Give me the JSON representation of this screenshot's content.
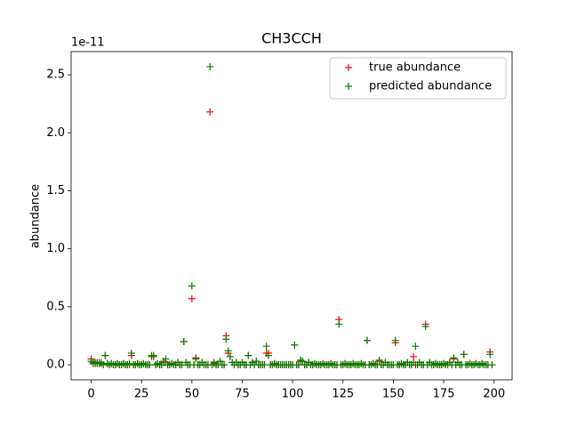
{
  "chart_data": {
    "type": "scatter",
    "title": "CH3CCH",
    "ylabel": "abundance",
    "y_offset_label": "1e-11",
    "x": [
      0,
      1,
      2,
      3,
      4,
      5,
      6,
      7,
      8,
      9,
      10,
      11,
      12,
      13,
      14,
      15,
      16,
      17,
      18,
      19,
      20,
      21,
      22,
      23,
      24,
      25,
      26,
      27,
      28,
      29,
      30,
      31,
      32,
      33,
      34,
      35,
      36,
      37,
      38,
      39,
      40,
      41,
      42,
      43,
      44,
      45,
      46,
      47,
      48,
      49,
      50,
      51,
      52,
      53,
      54,
      55,
      56,
      57,
      58,
      59,
      60,
      61,
      62,
      63,
      64,
      65,
      66,
      67,
      68,
      69,
      70,
      71,
      72,
      73,
      74,
      75,
      76,
      77,
      78,
      79,
      80,
      81,
      82,
      83,
      84,
      85,
      86,
      87,
      88,
      89,
      90,
      91,
      92,
      93,
      94,
      95,
      96,
      97,
      98,
      99,
      100,
      101,
      102,
      103,
      104,
      105,
      106,
      107,
      108,
      109,
      110,
      111,
      112,
      113,
      114,
      115,
      116,
      117,
      118,
      119,
      120,
      121,
      122,
      123,
      124,
      125,
      126,
      127,
      128,
      129,
      130,
      131,
      132,
      133,
      134,
      135,
      136,
      137,
      138,
      139,
      140,
      141,
      142,
      143,
      144,
      145,
      146,
      147,
      148,
      149,
      150,
      151,
      152,
      153,
      154,
      155,
      156,
      157,
      158,
      159,
      160,
      161,
      162,
      163,
      164,
      165,
      166,
      167,
      168,
      169,
      170,
      171,
      172,
      173,
      174,
      175,
      176,
      177,
      178,
      179,
      180,
      181,
      182,
      183,
      184,
      185,
      186,
      187,
      188,
      189,
      190,
      191,
      192,
      193,
      194,
      195,
      196,
      197,
      198,
      199
    ],
    "series": [
      {
        "name": "true abundance",
        "color": "#ff0000",
        "values": [
          0.05,
          0.02,
          0.01,
          0.02,
          0.01,
          0.02,
          0,
          0.08,
          0.01,
          0,
          0.01,
          0,
          0,
          0.01,
          0,
          0,
          0.01,
          0,
          0,
          0,
          0.08,
          0,
          0,
          0.01,
          0,
          0,
          0.01,
          0,
          0,
          0,
          0.07,
          0.08,
          0,
          0.01,
          0,
          0,
          0.03,
          0.02,
          0,
          0,
          0.01,
          0,
          0,
          0.02,
          0,
          0,
          0.2,
          0.02,
          0,
          0,
          0.57,
          0,
          0.06,
          0,
          0,
          0.02,
          0,
          0,
          0,
          2.18,
          0,
          0.02,
          0,
          0,
          0.03,
          0,
          0,
          0.25,
          0.1,
          0.07,
          0.02,
          0,
          0.02,
          0,
          0,
          0.02,
          0,
          0,
          0.08,
          0,
          0.02,
          0,
          0.03,
          0,
          0,
          0,
          0,
          0.1,
          0.1,
          0,
          0,
          0.01,
          0,
          0,
          0,
          0,
          0,
          0,
          0,
          0,
          0,
          0.17,
          0,
          0,
          0.03,
          0.03,
          0,
          0,
          0.02,
          0,
          0,
          0.01,
          0,
          0,
          0,
          0.01,
          0,
          0,
          0,
          0.01,
          0,
          0,
          0,
          0.39,
          0,
          0,
          0.01,
          0,
          0,
          0,
          0.01,
          0,
          0,
          0,
          0.01,
          0,
          0,
          0.21,
          0,
          0,
          0.01,
          0,
          0,
          0.03,
          0,
          0,
          0.02,
          0,
          0,
          0,
          0,
          0.19,
          0,
          0,
          0.01,
          0,
          0,
          0.02,
          0,
          0,
          0.07,
          0,
          0,
          0.02,
          0,
          0,
          0.35,
          0,
          0.02,
          0,
          0,
          0.01,
          0,
          0,
          0,
          0.01,
          0,
          0,
          0.02,
          0,
          0.05,
          0,
          0.02,
          0,
          0,
          0.09,
          0,
          0,
          0.01,
          0,
          0,
          0.01,
          0,
          0,
          0.01,
          0,
          0,
          0,
          0.11,
          0
        ]
      },
      {
        "name": "predicted abundance",
        "color": "#008000",
        "values": [
          0.03,
          0.01,
          0.02,
          0.01,
          0.02,
          0.01,
          0,
          0.08,
          0.01,
          0,
          0.01,
          0,
          0,
          0.01,
          0,
          0,
          0.01,
          0,
          0,
          0.01,
          0.1,
          0,
          0,
          0.01,
          0,
          0,
          0.01,
          0,
          0,
          0,
          0.08,
          0.07,
          0,
          0.01,
          0,
          0,
          0.02,
          0.05,
          0,
          0,
          0.01,
          0,
          0,
          0.02,
          0,
          0,
          0.2,
          0.02,
          0,
          0,
          0.68,
          0,
          0.05,
          0,
          0,
          0.02,
          0,
          0,
          0,
          2.57,
          0,
          0.01,
          0,
          0,
          0.03,
          0,
          0,
          0.22,
          0.12,
          0.07,
          0.02,
          0,
          0.02,
          0,
          0,
          0.02,
          0,
          0,
          0.08,
          0,
          0.02,
          0,
          0.03,
          0,
          0,
          0,
          0,
          0.16,
          0.08,
          0,
          0,
          0.01,
          0,
          0,
          0,
          0,
          0,
          0,
          0,
          0,
          0,
          0.17,
          0,
          0,
          0.04,
          0.03,
          0,
          0,
          0.02,
          0,
          0,
          0.01,
          0,
          0,
          0,
          0.01,
          0,
          0,
          0,
          0.01,
          0,
          0,
          0,
          0.35,
          0,
          0,
          0.01,
          0,
          0,
          0,
          0.01,
          0,
          0,
          0,
          0.01,
          0,
          0,
          0.21,
          0,
          0,
          0.01,
          0,
          0,
          0.04,
          0,
          0,
          0.02,
          0,
          0,
          0,
          0,
          0.21,
          0,
          0,
          0.01,
          0,
          0,
          0.02,
          0,
          0,
          0.02,
          0.16,
          0,
          0.02,
          0,
          0,
          0.33,
          0,
          0.02,
          0,
          0,
          0.01,
          0,
          0,
          0,
          0.01,
          0,
          0,
          0.02,
          0,
          0.06,
          0,
          0.02,
          0,
          0,
          0.09,
          0,
          0,
          0.01,
          0,
          0,
          0.01,
          0,
          0,
          0.01,
          0,
          0,
          0,
          0.09,
          0
        ]
      }
    ],
    "xlim": [
      -9.95,
      208.95
    ],
    "xticks": [
      0,
      25,
      50,
      75,
      100,
      125,
      150,
      175,
      200
    ],
    "ylim": [
      -0.13,
      2.7
    ],
    "yticks": [
      {
        "value": 0,
        "label": "0.0"
      },
      0.5,
      {
        "value": 1,
        "label": "1.0"
      },
      1.5,
      {
        "value": 2,
        "label": "2.0"
      },
      2.5
    ],
    "legend": "upper right",
    "grid": false
  }
}
